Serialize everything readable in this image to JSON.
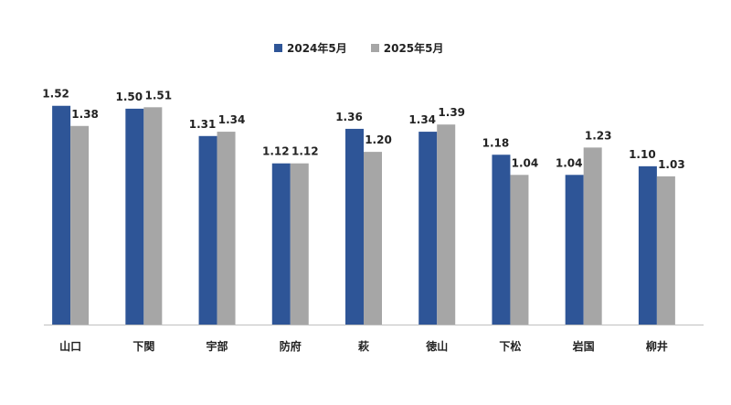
{
  "chart_data": {
    "type": "bar",
    "categories": [
      "山口",
      "下関",
      "宇部",
      "防府",
      "萩",
      "徳山",
      "下松",
      "岩国",
      "柳井"
    ],
    "series": [
      {
        "name": "2024年5月",
        "color": "#2e5597",
        "values": [
          1.52,
          1.5,
          1.31,
          1.12,
          1.36,
          1.34,
          1.18,
          1.04,
          1.1
        ]
      },
      {
        "name": "2025年5月",
        "color": "#a6a6a6",
        "values": [
          1.38,
          1.51,
          1.34,
          1.12,
          1.2,
          1.39,
          1.04,
          1.23,
          1.03
        ]
      }
    ],
    "data_labels": [
      [
        "1.52",
        "1.50",
        "1.31",
        "1.12",
        "1.36",
        "1.34",
        "1.18",
        "1.04",
        "1.10"
      ],
      [
        "1.38",
        "1.51",
        "1.34",
        "1.12",
        "1.20",
        "1.39",
        "1.04",
        "1.23",
        "1.03"
      ]
    ],
    "ylim": [
      0,
      1.62
    ],
    "grid": false,
    "legend_position": "top-center",
    "title": "",
    "xlabel": "",
    "ylabel": ""
  }
}
